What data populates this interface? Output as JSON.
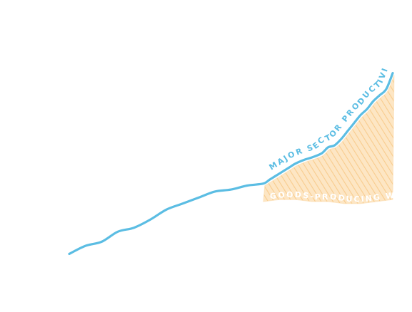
{
  "chart_data": {
    "type": "area",
    "title": "",
    "xlabel": "",
    "ylabel": "",
    "grid": false,
    "legend": "none",
    "series": [
      {
        "name": "MAJOR SECTOR PRODUCTIVITY",
        "kind": "line",
        "color": "#5bbde3",
        "x": [
          0,
          5,
          10,
          15,
          20,
          25,
          30,
          35,
          40,
          45,
          50,
          55,
          60,
          62,
          65,
          68,
          70,
          73,
          75,
          78,
          80,
          82,
          84,
          86,
          88,
          90,
          92,
          94,
          96,
          98,
          100
        ],
        "values": [
          2,
          6,
          8,
          13,
          15,
          19,
          24,
          27,
          30,
          33,
          34,
          36,
          37,
          39,
          42,
          45,
          47,
          49,
          50,
          52,
          55,
          56,
          59,
          63,
          67,
          71,
          74,
          78,
          81,
          84,
          92
        ]
      },
      {
        "name": "GOODS-PRODUCING WORKERS",
        "kind": "area",
        "color": "#fbd8a5",
        "x": [
          60,
          65,
          70,
          75,
          80,
          85,
          90,
          95,
          100
        ],
        "values": [
          28,
          29,
          29,
          28,
          28,
          27,
          27,
          28,
          29
        ]
      }
    ]
  }
}
